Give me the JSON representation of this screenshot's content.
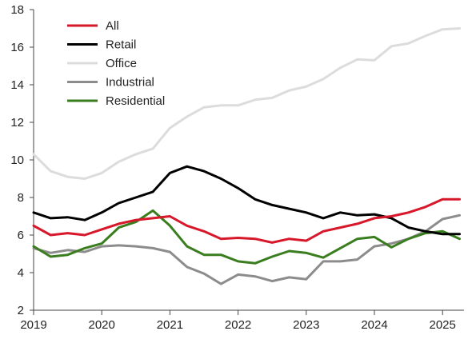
{
  "chart_data": {
    "type": "line",
    "title": "",
    "xlabel": "",
    "ylabel": "",
    "xlim": [
      2019,
      2025.25
    ],
    "ylim": [
      2,
      18
    ],
    "y_ticks": [
      "2",
      "4",
      "6",
      "8",
      "10",
      "12",
      "14",
      "16",
      "18"
    ],
    "x_ticks": [
      "2019",
      "2020",
      "2021",
      "2022",
      "2023",
      "2024",
      "2025"
    ],
    "grid": false,
    "legend_position": "top-left",
    "x": [
      2019.0,
      2019.25,
      2019.5,
      2019.75,
      2020.0,
      2020.25,
      2020.5,
      2020.75,
      2021.0,
      2021.25,
      2021.5,
      2021.75,
      2022.0,
      2022.25,
      2022.5,
      2022.75,
      2023.0,
      2023.25,
      2023.5,
      2023.75,
      2024.0,
      2024.25,
      2024.5,
      2024.75,
      2025.0,
      2025.25
    ],
    "series": [
      {
        "name": "All",
        "color": "#d7182a",
        "values": [
          6.5,
          6.0,
          6.1,
          6.0,
          6.3,
          6.6,
          6.8,
          6.9,
          7.0,
          6.5,
          6.2,
          5.8,
          5.85,
          5.8,
          5.6,
          5.8,
          5.7,
          6.2,
          6.4,
          6.6,
          6.9,
          7.0,
          7.2,
          7.5,
          7.9,
          7.9
        ]
      },
      {
        "name": "Retail",
        "color": "#000000",
        "values": [
          7.2,
          6.9,
          6.95,
          6.8,
          7.2,
          7.7,
          8.0,
          8.3,
          9.3,
          9.65,
          9.4,
          9.0,
          8.5,
          7.9,
          7.6,
          7.4,
          7.2,
          6.9,
          7.2,
          7.05,
          7.1,
          6.9,
          6.4,
          6.2,
          6.05,
          6.05
        ]
      },
      {
        "name": "Office",
        "color": "#dcdcdc",
        "values": [
          10.3,
          9.4,
          9.1,
          9.0,
          9.3,
          9.9,
          10.3,
          10.6,
          11.7,
          12.3,
          12.8,
          12.9,
          12.9,
          13.2,
          13.3,
          13.7,
          13.9,
          14.3,
          14.9,
          15.35,
          15.3,
          16.05,
          16.2,
          16.6,
          16.95,
          17.0
        ]
      },
      {
        "name": "Industrial",
        "color": "#8c8c8c",
        "values": [
          5.3,
          5.05,
          5.2,
          5.1,
          5.4,
          5.45,
          5.4,
          5.3,
          5.1,
          4.3,
          3.95,
          3.4,
          3.9,
          3.8,
          3.55,
          3.75,
          3.65,
          4.6,
          4.6,
          4.7,
          5.4,
          5.55,
          5.8,
          6.2,
          6.85,
          7.05
        ]
      },
      {
        "name": "Residential",
        "color": "#3a7d1e",
        "values": [
          5.4,
          4.85,
          4.95,
          5.3,
          5.55,
          6.4,
          6.7,
          7.3,
          6.5,
          5.4,
          4.95,
          4.95,
          4.6,
          4.5,
          4.85,
          5.15,
          5.05,
          4.8,
          5.3,
          5.8,
          5.9,
          5.35,
          5.8,
          6.1,
          6.2,
          5.8
        ]
      }
    ]
  }
}
